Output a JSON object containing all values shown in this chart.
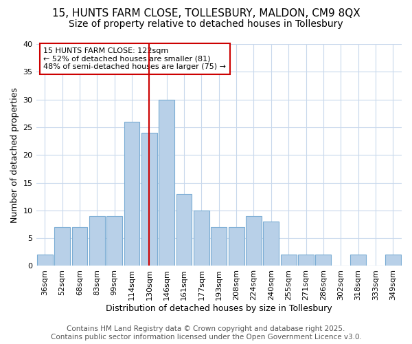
{
  "title_line1": "15, HUNTS FARM CLOSE, TOLLESBURY, MALDON, CM9 8QX",
  "title_line2": "Size of property relative to detached houses in Tollesbury",
  "xlabel": "Distribution of detached houses by size in Tollesbury",
  "ylabel": "Number of detached properties",
  "categories": [
    "36sqm",
    "52sqm",
    "68sqm",
    "83sqm",
    "99sqm",
    "114sqm",
    "130sqm",
    "146sqm",
    "161sqm",
    "177sqm",
    "193sqm",
    "208sqm",
    "224sqm",
    "240sqm",
    "255sqm",
    "271sqm",
    "286sqm",
    "302sqm",
    "318sqm",
    "333sqm",
    "349sqm"
  ],
  "values": [
    2,
    7,
    7,
    9,
    9,
    26,
    24,
    30,
    13,
    10,
    7,
    7,
    9,
    8,
    2,
    2,
    2,
    0,
    2,
    0,
    2
  ],
  "bar_color": "#b8d0e8",
  "bar_edge_color": "#7aacd4",
  "red_line_x": 6.0,
  "red_line_color": "#cc0000",
  "ylim": [
    0,
    40
  ],
  "yticks": [
    0,
    5,
    10,
    15,
    20,
    25,
    30,
    35,
    40
  ],
  "annotation_title": "15 HUNTS FARM CLOSE: 122sqm",
  "annotation_line1": "← 52% of detached houses are smaller (81)",
  "annotation_line2": "48% of semi-detached houses are larger (75) →",
  "annotation_box_color": "#ffffff",
  "annotation_box_edge": "#cc0000",
  "footer_line1": "Contains HM Land Registry data © Crown copyright and database right 2025.",
  "footer_line2": "Contains public sector information licensed under the Open Government Licence v3.0.",
  "background_color": "#ffffff",
  "grid_color": "#c8d8ec",
  "title_fontsize": 11,
  "subtitle_fontsize": 10,
  "axis_label_fontsize": 9,
  "tick_fontsize": 8,
  "footer_fontsize": 7.5
}
